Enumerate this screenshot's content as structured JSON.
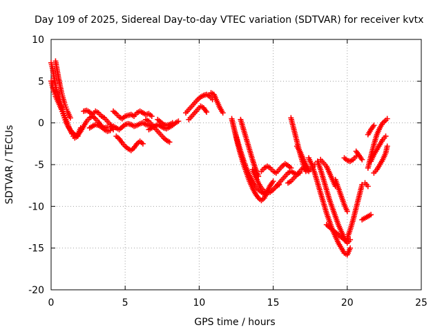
{
  "chart_data": {
    "type": "scatter",
    "title": "Day 109 of 2025, Sidereal Day-to-day VTEC variation (SDTVAR) for receiver kvtx",
    "xlabel": "GPS time / hours",
    "ylabel": "SDTVAR / TECUs",
    "xlim": [
      0,
      25
    ],
    "ylim": [
      -20,
      10
    ],
    "xticks": [
      "0",
      "5",
      "10",
      "15",
      "20",
      "25"
    ],
    "yticks": [
      "10",
      "5",
      "0",
      "-5",
      "-10",
      "-15",
      "-20"
    ],
    "grid": true,
    "marker": "plus",
    "color": "#ff0000",
    "series": [
      {
        "x": [
          0.0,
          0.1,
          0.2,
          0.3,
          0.4,
          0.5,
          0.6,
          0.7,
          0.8,
          0.9,
          1.0,
          1.1,
          1.2,
          1.3,
          1.4,
          1.5,
          1.6,
          1.7,
          1.8,
          1.9,
          2.0
        ],
        "y": [
          7.2,
          6.5,
          5.5,
          4.5,
          3.8,
          3.2,
          2.6,
          2.0,
          1.4,
          0.9,
          0.4,
          0.0,
          -0.5,
          -0.9,
          -1.3,
          -1.6,
          -1.8,
          -1.7,
          -1.4,
          -1.0,
          -0.6
        ]
      },
      {
        "x": [
          0.0,
          0.1,
          0.2,
          0.3,
          0.4,
          0.5,
          0.6,
          0.7,
          0.8,
          0.9,
          1.0,
          1.2,
          1.4,
          1.6,
          1.8
        ],
        "y": [
          5.0,
          4.3,
          3.7,
          3.2,
          2.8,
          2.4,
          2.0,
          1.6,
          1.1,
          0.6,
          0.1,
          -0.6,
          -1.1,
          -1.4,
          -1.6
        ]
      },
      {
        "x": [
          0.3,
          0.4,
          0.5,
          0.6,
          0.7,
          0.8,
          0.9,
          1.0,
          1.1,
          1.2,
          1.3
        ],
        "y": [
          7.4,
          6.4,
          5.4,
          4.5,
          3.7,
          3.0,
          2.4,
          1.9,
          1.4,
          1.0,
          0.6
        ]
      },
      {
        "x": [
          2.2,
          2.4,
          2.6,
          2.8,
          3.0,
          3.2,
          3.4,
          3.6,
          3.8,
          4.0,
          4.2
        ],
        "y": [
          1.4,
          1.5,
          1.3,
          1.0,
          1.4,
          1.2,
          0.8,
          0.6,
          0.2,
          -0.2,
          -0.8
        ]
      },
      {
        "x": [
          1.8,
          2.0,
          2.2,
          2.4,
          2.6,
          2.8,
          3.0,
          3.2,
          3.4,
          3.6,
          3.8
        ],
        "y": [
          -1.5,
          -1.0,
          -0.4,
          0.2,
          0.6,
          0.8,
          0.5,
          0.1,
          -0.4,
          -0.6,
          -0.5
        ]
      },
      {
        "x": [
          2.6,
          2.8,
          3.0,
          3.2,
          3.4,
          3.6,
          3.8,
          4.0
        ],
        "y": [
          -0.6,
          -0.4,
          -0.2,
          -0.3,
          -0.5,
          -0.8,
          -1.0,
          -0.9
        ]
      },
      {
        "x": [
          4.2,
          4.4,
          4.6,
          4.8,
          5.0,
          5.2,
          5.4,
          5.6,
          5.8,
          6.0,
          6.2,
          6.4,
          6.6,
          6.8
        ],
        "y": [
          1.4,
          1.1,
          0.7,
          0.5,
          0.8,
          0.9,
          1.0,
          0.8,
          1.2,
          1.4,
          1.2,
          1.0,
          1.1,
          0.8
        ]
      },
      {
        "x": [
          4.2,
          4.4,
          4.6,
          4.8,
          5.0,
          5.2,
          5.4,
          5.6,
          5.8,
          6.0,
          6.2,
          6.4,
          6.6,
          6.8
        ],
        "y": [
          -0.4,
          -0.6,
          -0.8,
          -0.5,
          -0.2,
          -0.1,
          -0.2,
          -0.4,
          -0.3,
          -0.1,
          0.0,
          -0.2,
          -0.3,
          -0.4
        ]
      },
      {
        "x": [
          4.4,
          4.6,
          4.8,
          5.0,
          5.2,
          5.4,
          5.6,
          5.8,
          6.0,
          6.2
        ],
        "y": [
          -1.6,
          -1.9,
          -2.4,
          -2.8,
          -3.1,
          -3.3,
          -3.0,
          -2.5,
          -2.2,
          -2.5
        ]
      },
      {
        "x": [
          6.4,
          6.6,
          6.8,
          7.0,
          7.2,
          7.4,
          7.6,
          7.8,
          8.0
        ],
        "y": [
          0.4,
          0.2,
          -0.2,
          -0.6,
          -1.0,
          -1.4,
          -1.8,
          -2.1,
          -2.3
        ]
      },
      {
        "x": [
          6.6,
          6.8,
          7.0,
          7.2,
          7.4,
          7.6,
          7.8,
          8.0,
          8.2,
          8.4,
          8.6
        ],
        "y": [
          -0.8,
          -0.6,
          -0.4,
          -0.2,
          -0.4,
          -0.6,
          -0.7,
          -0.5,
          -0.3,
          0.0,
          0.2
        ]
      },
      {
        "x": [
          7.2,
          7.4,
          7.6,
          7.8,
          8.0,
          8.2
        ],
        "y": [
          0.4,
          0.1,
          -0.2,
          -0.3,
          -0.2,
          0.0
        ]
      },
      {
        "x": [
          9.1,
          9.3,
          9.5,
          9.7,
          9.9,
          10.1,
          10.3,
          10.5,
          10.7,
          10.9
        ],
        "y": [
          1.2,
          1.6,
          2.0,
          2.4,
          2.8,
          3.1,
          3.3,
          3.4,
          3.2,
          2.8
        ]
      },
      {
        "x": [
          9.3,
          9.5,
          9.7,
          9.9,
          10.1,
          10.3,
          10.5
        ],
        "y": [
          0.4,
          0.8,
          1.2,
          1.6,
          2.0,
          1.8,
          1.3
        ]
      },
      {
        "x": [
          10.8,
          11.0,
          11.2,
          11.4,
          11.6
        ],
        "y": [
          3.6,
          3.4,
          2.6,
          1.8,
          1.2
        ]
      },
      {
        "x": [
          12.2,
          12.4,
          12.6,
          12.8,
          13.0,
          13.2,
          13.4,
          13.6,
          13.8,
          14.0,
          14.2,
          14.4,
          14.6,
          14.8,
          15.0
        ],
        "y": [
          0.5,
          -1.0,
          -2.5,
          -3.8,
          -5.0,
          -6.0,
          -7.0,
          -7.8,
          -8.5,
          -9.0,
          -9.3,
          -9.0,
          -8.2,
          -7.5,
          -7.0
        ]
      },
      {
        "x": [
          12.4,
          12.6,
          12.8,
          13.0,
          13.2,
          13.4,
          13.6,
          13.8,
          14.0,
          14.2,
          14.4
        ],
        "y": [
          -1.0,
          -2.2,
          -3.4,
          -4.5,
          -5.5,
          -6.3,
          -7.0,
          -7.6,
          -8.0,
          -8.3,
          -8.5
        ]
      },
      {
        "x": [
          12.8,
          13.0,
          13.2,
          13.4,
          13.6,
          13.8,
          14.0
        ],
        "y": [
          0.4,
          -0.8,
          -2.0,
          -3.2,
          -4.4,
          -5.5,
          -6.4
        ]
      },
      {
        "x": [
          13.6,
          13.8,
          14.0,
          14.2,
          14.4,
          14.6,
          14.8,
          15.0,
          15.2,
          15.4
        ],
        "y": [
          -5.6,
          -6.4,
          -7.2,
          -7.8,
          -8.2,
          -8.4,
          -8.3,
          -8.0,
          -7.6,
          -7.4
        ]
      },
      {
        "x": [
          14.2,
          14.4,
          14.6,
          14.8,
          15.0,
          15.2,
          15.4,
          15.6,
          15.8,
          16.0,
          16.2
        ],
        "y": [
          -5.8,
          -5.4,
          -5.2,
          -5.4,
          -5.8,
          -6.0,
          -5.6,
          -5.2,
          -4.9,
          -5.1,
          -5.4
        ]
      },
      {
        "x": [
          15.0,
          15.2,
          15.4,
          15.6,
          15.8,
          16.0,
          16.2,
          16.4,
          16.6,
          16.8
        ],
        "y": [
          -8.0,
          -7.6,
          -7.2,
          -6.8,
          -6.4,
          -6.0,
          -5.8,
          -6.0,
          -6.2,
          -6.0
        ]
      },
      {
        "x": [
          16.0,
          16.2,
          16.4,
          16.6,
          16.8,
          17.0,
          17.2,
          17.4,
          17.6,
          17.8
        ],
        "y": [
          -7.2,
          -7.0,
          -6.6,
          -6.2,
          -5.8,
          -5.4,
          -5.6,
          -5.8,
          -5.4,
          -5.0
        ]
      },
      {
        "x": [
          16.2,
          16.4,
          16.6,
          16.8,
          17.0,
          17.2
        ],
        "y": [
          0.6,
          -0.8,
          -2.2,
          -3.6,
          -4.8,
          -5.8
        ]
      },
      {
        "x": [
          16.6,
          16.8,
          17.0,
          17.2,
          17.4
        ],
        "y": [
          -2.8,
          -3.4,
          -4.2,
          -5.0,
          -5.6
        ]
      },
      {
        "x": [
          17.4,
          17.6,
          17.8,
          18.0,
          18.2,
          18.4,
          18.6,
          18.8,
          19.0,
          19.2,
          19.4,
          19.6,
          19.8,
          20.0,
          20.2
        ],
        "y": [
          -4.2,
          -5.0,
          -6.0,
          -7.2,
          -8.4,
          -9.6,
          -10.8,
          -11.8,
          -12.8,
          -13.6,
          -14.4,
          -15.0,
          -15.6,
          -15.8,
          -15.0
        ]
      },
      {
        "x": [
          18.0,
          18.2,
          18.4,
          18.6,
          18.8,
          19.0,
          19.2,
          19.4,
          19.6,
          19.8,
          20.0,
          20.2
        ],
        "y": [
          -4.6,
          -5.6,
          -6.8,
          -8.0,
          -9.2,
          -10.2,
          -11.2,
          -12.2,
          -13.0,
          -13.8,
          -14.4,
          -14.0
        ]
      },
      {
        "x": [
          18.6,
          18.8,
          19.0,
          19.2,
          19.4,
          19.6,
          19.8,
          20.0
        ],
        "y": [
          -12.2,
          -12.5,
          -12.8,
          -13.1,
          -13.4,
          -13.7,
          -14.0,
          -14.2
        ]
      },
      {
        "x": [
          20.0,
          20.2,
          20.4,
          20.6,
          20.8,
          21.0
        ],
        "y": [
          -13.8,
          -12.8,
          -11.6,
          -10.2,
          -8.8,
          -7.4
        ]
      },
      {
        "x": [
          18.2,
          18.4,
          18.6,
          18.8,
          19.0,
          19.2
        ],
        "y": [
          -4.4,
          -4.8,
          -5.2,
          -6.0,
          -6.8,
          -7.6
        ]
      },
      {
        "x": [
          19.2,
          19.4,
          19.6,
          19.8,
          20.0
        ],
        "y": [
          -6.8,
          -7.8,
          -8.8,
          -9.8,
          -10.6
        ]
      },
      {
        "x": [
          19.8,
          20.0,
          20.2,
          20.4,
          20.6
        ],
        "y": [
          -4.2,
          -4.5,
          -4.6,
          -4.4,
          -4.0
        ]
      },
      {
        "x": [
          21.0,
          21.2,
          21.4,
          21.6
        ],
        "y": [
          -11.6,
          -11.4,
          -11.2,
          -11.0
        ]
      },
      {
        "x": [
          20.6,
          20.8,
          21.0
        ],
        "y": [
          -3.4,
          -3.9,
          -4.4
        ]
      },
      {
        "x": [
          21.2,
          21.4
        ],
        "y": [
          -7.2,
          -7.6
        ]
      },
      {
        "x": [
          21.4,
          21.6,
          21.8,
          22.0,
          22.2,
          22.4,
          22.6,
          22.7
        ],
        "y": [
          -5.4,
          -4.0,
          -2.6,
          -1.4,
          -0.6,
          0.0,
          0.3,
          0.5
        ]
      },
      {
        "x": [
          21.6,
          21.8,
          22.0,
          22.2,
          22.4,
          22.6
        ],
        "y": [
          -4.6,
          -3.8,
          -3.2,
          -2.6,
          -2.0,
          -1.6
        ]
      },
      {
        "x": [
          21.4,
          21.6,
          21.8
        ],
        "y": [
          -1.4,
          -0.8,
          -0.3
        ]
      },
      {
        "x": [
          21.8,
          22.0,
          22.2,
          22.4,
          22.6,
          22.7
        ],
        "y": [
          -6.0,
          -5.6,
          -5.0,
          -4.4,
          -3.6,
          -2.8
        ]
      }
    ]
  }
}
